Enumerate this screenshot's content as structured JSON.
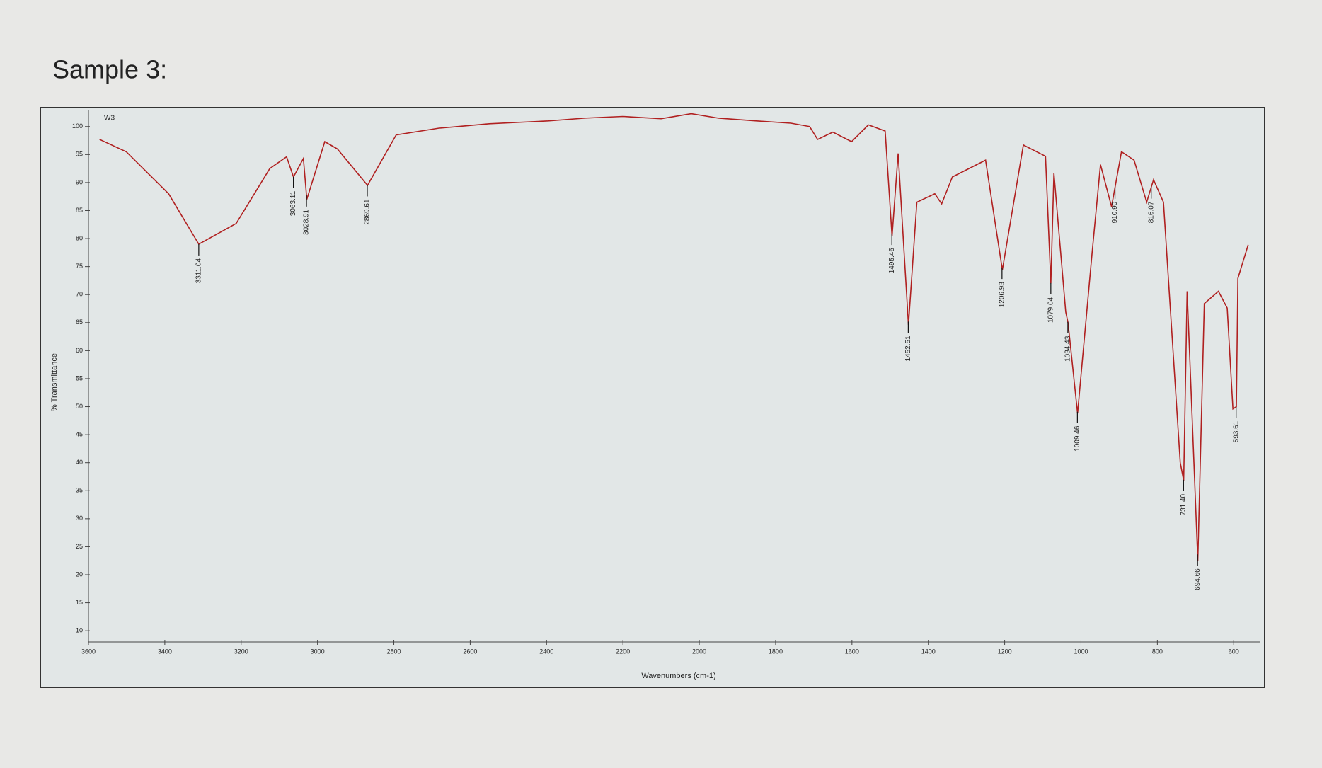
{
  "chart_data": {
    "type": "line",
    "title": "Sample 3:",
    "x_label": "Wavenumbers (cm-1)",
    "y_label": "% Transmittance",
    "xlim": [
      3600,
      530
    ],
    "ylim": [
      8,
      103
    ],
    "xticks": [
      3600,
      3400,
      3200,
      3000,
      2800,
      2600,
      2400,
      2200,
      2000,
      1800,
      1600,
      1400,
      1200,
      1000,
      800,
      600
    ],
    "yticks": [
      10,
      15,
      20,
      25,
      30,
      35,
      40,
      45,
      50,
      55,
      60,
      65,
      70,
      75,
      80,
      85,
      90,
      95,
      100
    ],
    "x": [
      3571,
      3501,
      3390,
      3311,
      3213,
      3125,
      3081,
      3063,
      3037,
      3028,
      2981,
      2948,
      2869,
      2794,
      2683,
      2550,
      2396,
      2300,
      2200,
      2100,
      2021,
      1950,
      1850,
      1760,
      1711,
      1690,
      1650,
      1601,
      1557,
      1513,
      1495,
      1479,
      1452,
      1430,
      1383,
      1365,
      1337,
      1250,
      1206,
      1151,
      1093,
      1079,
      1071,
      1040,
      1034,
      1009,
      971,
      949,
      920,
      894,
      861,
      828,
      810,
      784,
      740,
      731,
      722,
      694,
      677,
      640,
      617,
      602,
      593,
      589,
      562
    ],
    "series": [
      {
        "name": "W3",
        "color": "#b02020",
        "values": [
          97.7,
          95.5,
          88,
          79,
          82.7,
          92.5,
          94.6,
          91,
          94.3,
          87,
          97.3,
          96,
          89.5,
          98.5,
          99.7,
          100.5,
          101,
          101.5,
          101.8,
          101.4,
          102.3,
          101.5,
          101,
          100.6,
          100,
          97.7,
          99,
          97.3,
          100.3,
          99.2,
          80.4,
          95.2,
          64.6,
          86.5,
          88,
          86.2,
          91,
          94,
          74.4,
          96.7,
          94.7,
          72,
          91.7,
          66.9,
          65,
          48.8,
          77.4,
          93.2,
          85.7,
          95.5,
          94,
          86.5,
          90.5,
          86.5,
          40,
          36.8,
          70.6,
          22.5,
          68.4,
          70.6,
          67.6,
          49.6,
          50,
          72.9,
          78.9
        ]
      }
    ],
    "peaks": [
      {
        "x": 3311.04,
        "label": "3311.04"
      },
      {
        "x": 3063.11,
        "label": "3063.11"
      },
      {
        "x": 3028.91,
        "label": "3028.91"
      },
      {
        "x": 2869.61,
        "label": "2869.61"
      },
      {
        "x": 1495.46,
        "label": "1495.46"
      },
      {
        "x": 1452.51,
        "label": "1452.51"
      },
      {
        "x": 1206.93,
        "label": "1206.93"
      },
      {
        "x": 1079.04,
        "label": "1079.04"
      },
      {
        "x": 1034.43,
        "label": "1034.43"
      },
      {
        "x": 1009.46,
        "label": "1009.46"
      },
      {
        "x": 910.9,
        "label": "910.90"
      },
      {
        "x": 816.07,
        "label": "816.07"
      },
      {
        "x": 731.4,
        "label": "731.40"
      },
      {
        "x": 694.66,
        "label": "694.66"
      },
      {
        "x": 593.61,
        "label": "593.61"
      }
    ]
  }
}
